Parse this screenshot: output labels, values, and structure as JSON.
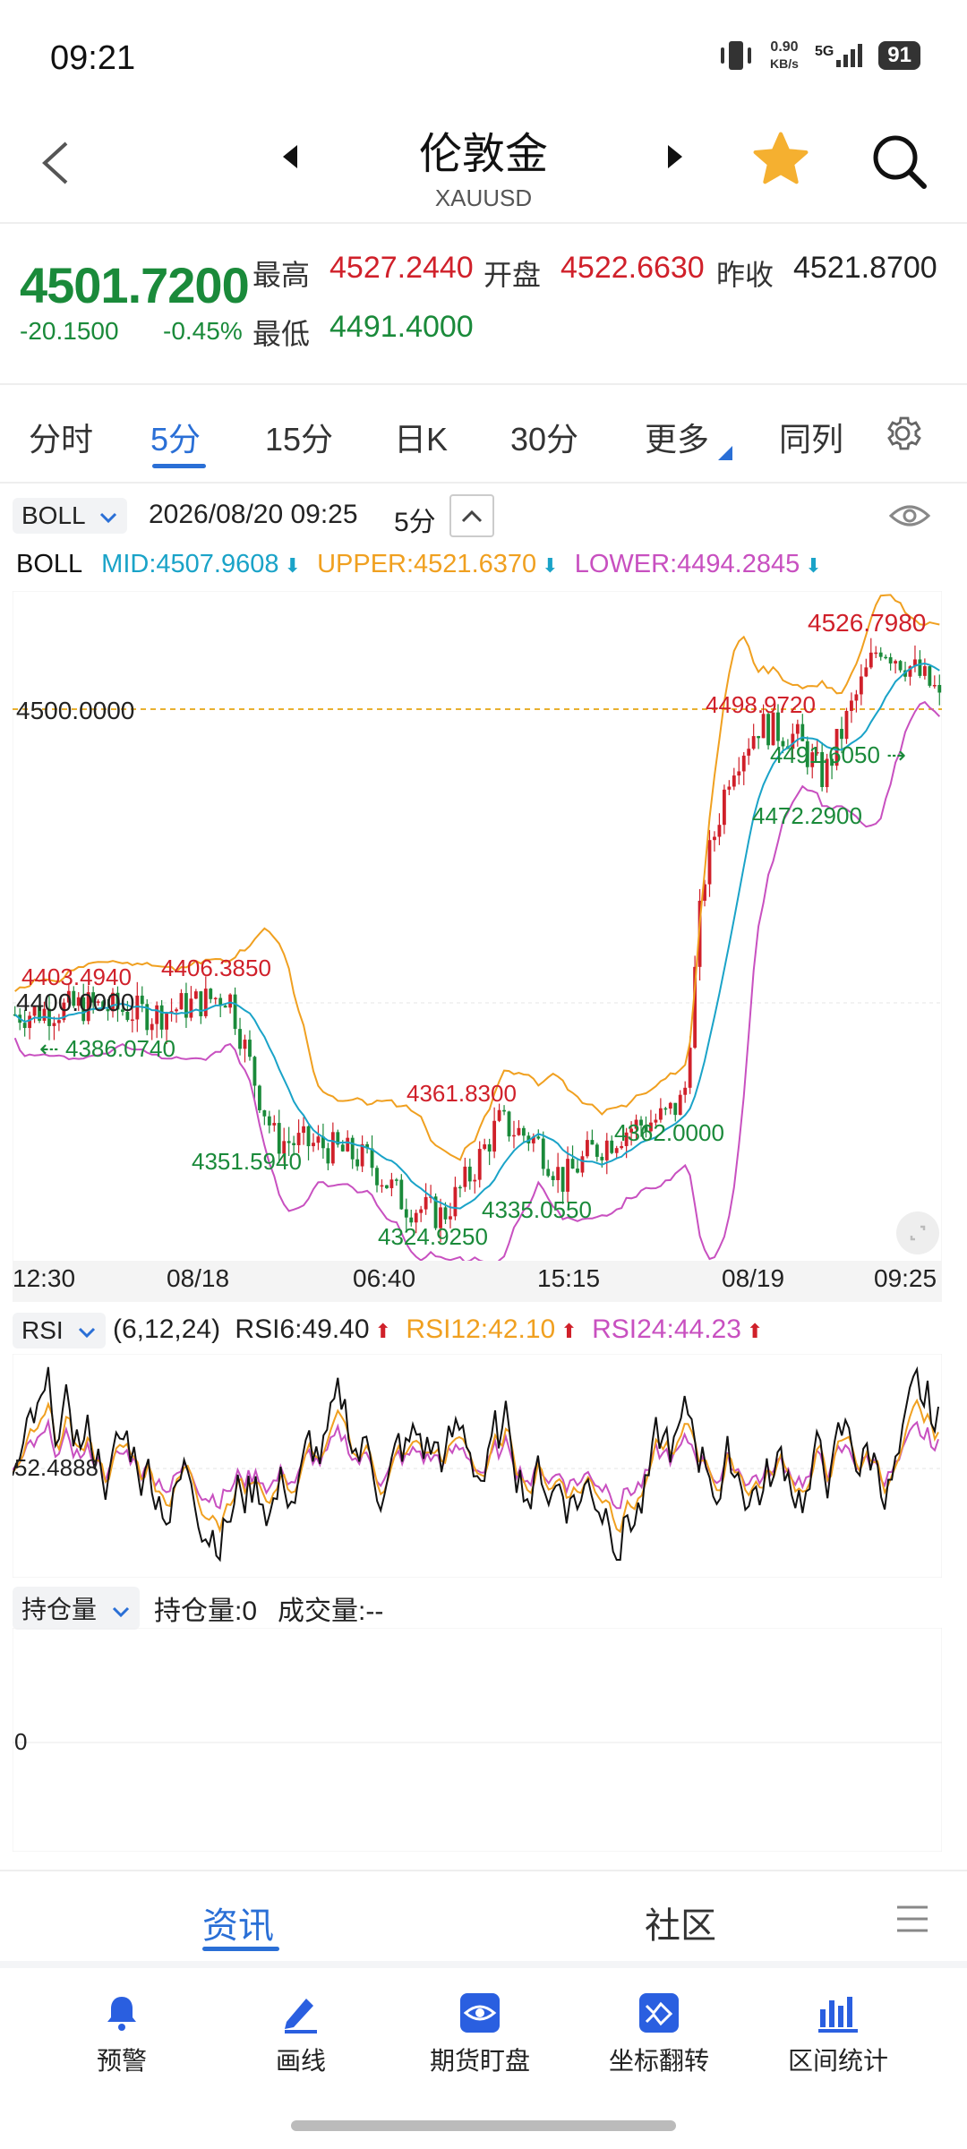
{
  "status": {
    "time": "09:21",
    "net_speed": "0.90",
    "net_unit": "KB/s",
    "network": "5G",
    "battery": "91"
  },
  "header": {
    "title": "伦敦金",
    "subtitle": "XAUUSD"
  },
  "quote": {
    "price": "4501.7200",
    "change": "-20.1500",
    "change_pct": "-0.45%",
    "high_label": "最高",
    "high": "4527.2440",
    "open_label": "开盘",
    "open": "4522.6630",
    "prev_close_label": "昨收",
    "prev_close": "4521.8700",
    "low_label": "最低",
    "low": "4491.4000"
  },
  "tabs": [
    "分时",
    "5分",
    "15分",
    "日K",
    "30分",
    "更多",
    "同列"
  ],
  "active_tab": "5分",
  "indicator_bar": {
    "selector": "BOLL",
    "datetime": "2026/08/20 09:25",
    "period": "5分"
  },
  "boll": {
    "name": "BOLL",
    "mid": "MID:4507.9608",
    "upper": "UPPER:4521.6370",
    "lower": "LOWER:4494.2845"
  },
  "chart_labels": {
    "max": "4526.7980",
    "ref_price": "4500.0000",
    "level_4400": "4400.0000",
    "a": "4403.4940",
    "b": "4406.3850",
    "c": "4386.0740",
    "d": "4351.5940",
    "e": "4361.8300",
    "f": "4324.9250",
    "g": "4335.0550",
    "h": "4362.0000",
    "i": "4498.9720",
    "j": "4491.6050",
    "k": "4472.2900"
  },
  "x_axis": [
    "12:30",
    "08/18",
    "06:40",
    "15:15",
    "08/19",
    "09:25"
  ],
  "rsi": {
    "selector": "RSI",
    "params": "(6,12,24)",
    "rsi6": "RSI6:49.40",
    "rsi12": "RSI12:42.10",
    "rsi24": "RSI24:44.23",
    "level": "52.4888"
  },
  "oi": {
    "selector": "持仓量",
    "oi_text": "持仓量:0",
    "vol_text": "成交量:--",
    "zero": "0"
  },
  "news_bar": {
    "news": "资讯",
    "community": "社区"
  },
  "bottom_nav": [
    {
      "label": "预警",
      "icon": "bell-icon"
    },
    {
      "label": "画线",
      "icon": "pen-icon"
    },
    {
      "label": "期货盯盘",
      "icon": "eye-icon"
    },
    {
      "label": "坐标翻转",
      "icon": "flip-icon"
    },
    {
      "label": "区间统计",
      "icon": "stats-icon"
    }
  ],
  "colors": {
    "up": "#d0202a",
    "down": "#1a8a3a",
    "mid": "#1aa3c8",
    "upper": "#f0a020",
    "lower": "#c850c0",
    "accent": "#2a6fd6",
    "star": "#f5b030"
  }
}
